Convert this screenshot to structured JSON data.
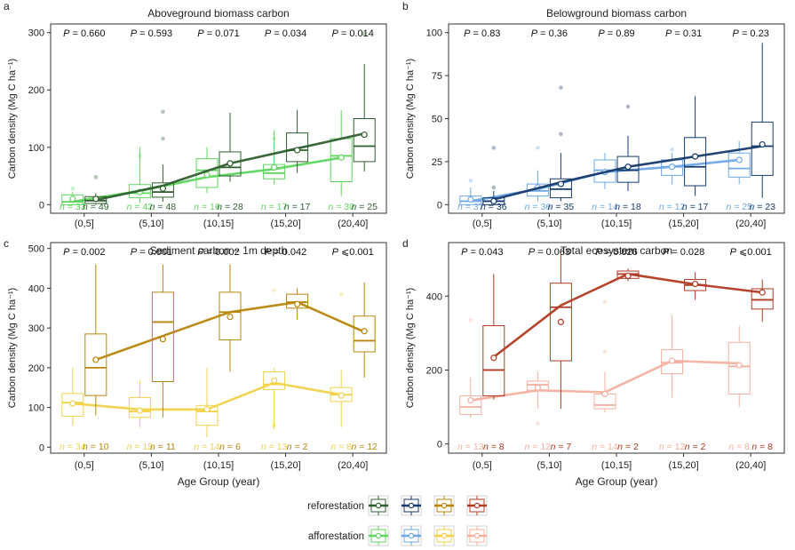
{
  "x_label": "Age Group (year)",
  "categories": [
    "(0,5]",
    "(5,10]",
    "(10,15]",
    "(15,20]",
    "(20,40]"
  ],
  "legend": {
    "rows": [
      {
        "label": "reforestation",
        "colors": [
          "#2f5f2f",
          "#163a6b",
          "#b8860b",
          "#b23a22"
        ]
      },
      {
        "label": "afforestation",
        "colors": [
          "#5fd65f",
          "#6fa8e8",
          "#f0d24a",
          "#f5b0a0"
        ]
      }
    ]
  },
  "chart_data": [
    {
      "type": "box",
      "panel_letter": "a",
      "title": "Aboveground biomass carbon",
      "ylabel": "Carbon density (Mg C ha⁻¹)",
      "ylim": [
        -15,
        315
      ],
      "yticks": [
        0,
        100,
        200,
        300
      ],
      "p_values": [
        "P = 0.660",
        "P = 0.593",
        "P = 0.071",
        "P = 0.034",
        "P = 0.014"
      ],
      "colors": {
        "reforestation": "#2f5f2f",
        "afforestation": "#5fd65f"
      },
      "series": [
        {
          "name": "reforestation",
          "boxes": [
            [
              0,
              2,
              7,
              14,
              20
            ],
            [
              5,
              13,
              22,
              38,
              70
            ],
            [
              40,
              50,
              65,
              92,
              160
            ],
            [
              55,
              75,
              95,
              125,
              165
            ],
            [
              58,
              75,
              102,
              150,
              245
            ]
          ],
          "means": [
            10,
            28,
            72,
            95,
            122
          ],
          "trend": [
            8,
            33,
            72,
            98,
            124
          ],
          "n": [
            "n = 49",
            "n = 48",
            "n = 28",
            "n = 17",
            "n = 25"
          ],
          "outliers": [
            [
              0,
              48
            ],
            [
              1,
              115
            ],
            [
              1,
              162
            ],
            [
              4,
              298
            ]
          ]
        },
        {
          "name": "afforestation",
          "boxes": [
            [
              0,
              0,
              5,
              17,
              22
            ],
            [
              3,
              12,
              20,
              35,
              100
            ],
            [
              20,
              30,
              60,
              80,
              100
            ],
            [
              35,
              45,
              55,
              70,
              130
            ],
            [
              15,
              40,
              85,
              115,
              165
            ]
          ],
          "means": [
            10,
            22,
            52,
            65,
            82
          ],
          "trend": [
            5,
            24,
            48,
            62,
            82
          ],
          "n": [
            "n = 33",
            "n = 42",
            "n = 16",
            "n = 17",
            "n = 30"
          ],
          "outliers": [
            [
              0,
              28
            ],
            [
              1,
              85
            ],
            [
              3,
              115
            ]
          ]
        }
      ]
    },
    {
      "type": "box",
      "panel_letter": "b",
      "title": "Belowground biomass carbon",
      "ylabel": "Carbon density (Mg C ha⁻¹)",
      "ylim": [
        -5,
        105
      ],
      "yticks": [
        0,
        25,
        50,
        75,
        100
      ],
      "p_values": [
        "P = 0.83",
        "P = 0.36",
        "P = 0.89",
        "P = 0.31",
        "P = 0.23"
      ],
      "colors": {
        "reforestation": "#163a6b",
        "afforestation": "#6fa8e8"
      },
      "series": [
        {
          "name": "reforestation",
          "boxes": [
            [
              0,
              0,
              2,
              4,
              8
            ],
            [
              2,
              4,
              9,
              15,
              30
            ],
            [
              8,
              13,
              20,
              28,
              40
            ],
            [
              5,
              11,
              22,
              39,
              63
            ],
            [
              4,
              17,
              34,
              48,
              94
            ]
          ],
          "means": [
            2,
            12,
            22,
            28,
            35
          ],
          "trend": [
            3,
            13,
            22,
            28,
            34
          ],
          "n": [
            "n = 36",
            "n = 35",
            "n = 18",
            "n = 17",
            "n = 23"
          ],
          "outliers": [
            [
              0,
              33
            ],
            [
              0,
              10
            ],
            [
              1,
              41
            ],
            [
              1,
              68
            ],
            [
              2,
              57
            ]
          ]
        },
        {
          "name": "afforestation",
          "boxes": [
            [
              0,
              0,
              2,
              5,
              10
            ],
            [
              2,
              5,
              8,
              12,
              20
            ],
            [
              9,
              13,
              20,
              26,
              30
            ],
            [
              12,
              17,
              22,
              26,
              30
            ],
            [
              12,
              16,
              21,
              30,
              37
            ]
          ],
          "means": [
            3,
            10,
            19,
            22,
            26
          ],
          "trend": [
            2,
            9,
            19,
            22,
            26
          ],
          "n": [
            "n = 37",
            "n = 36",
            "n = 14",
            "n = 12",
            "n = 25"
          ],
          "outliers": [
            [
              0,
              14
            ],
            [
              1,
              33
            ],
            [
              3,
              32
            ]
          ]
        }
      ]
    },
    {
      "type": "box",
      "panel_letter": "c",
      "title": "Sediment carbon − 1m depth",
      "ylabel": "Carbon density (Mg C ha⁻¹)",
      "ylim": [
        -15,
        515
      ],
      "yticks": [
        0,
        100,
        200,
        300,
        400,
        500
      ],
      "p_values": [
        "P = 0.002",
        "P = 0.001",
        "P = 0.002",
        "P = 0.042",
        "P ⩽0.001"
      ],
      "colors": {
        "reforestation": "#b8860b",
        "afforestation": "#f0d24a"
      },
      "series": [
        {
          "name": "reforestation",
          "boxes": [
            [
              80,
              130,
              200,
              285,
              460
            ],
            [
              75,
              165,
              315,
              390,
              460
            ],
            [
              190,
              270,
              340,
              390,
              460
            ],
            [
              320,
              350,
              365,
              385,
              400
            ],
            [
              175,
              240,
              268,
              330,
              415
            ]
          ],
          "means": [
            220,
            272,
            328,
            360,
            292
          ],
          "trend": [
            220,
            280,
            340,
            365,
            290
          ],
          "n": [
            "n = 10",
            "n = 11",
            "n = 6",
            "n = 2",
            "n = 12"
          ],
          "outliers": []
        },
        {
          "name": "afforestation",
          "boxes": [
            [
              55,
              78,
              112,
              135,
              200
            ],
            [
              50,
              75,
              90,
              125,
              170
            ],
            [
              25,
              55,
              90,
              105,
              200
            ],
            [
              45,
              145,
              158,
              190,
              200
            ],
            [
              50,
              115,
              132,
              150,
              195
            ]
          ],
          "means": [
            110,
            92,
            95,
            168,
            130
          ],
          "trend": [
            110,
            95,
            95,
            162,
            132
          ],
          "n": [
            "n = 34",
            "n = 15",
            "n = 14",
            "n = 13",
            "n = 8"
          ],
          "outliers": [
            [
              3,
              55
            ],
            [
              3,
              395
            ],
            [
              4,
              385
            ]
          ]
        }
      ]
    },
    {
      "type": "box",
      "panel_letter": "d",
      "title": "Total ecosystem carbon",
      "ylabel": "Carbon density (Mg C ha⁻¹)",
      "ylim": [
        -25,
        545
      ],
      "yticks": [
        0,
        200,
        400
      ],
      "p_values": [
        "P = 0.043",
        "P = 0.063",
        "P = 0.026",
        "P = 0.028",
        "P ⩽0.001"
      ],
      "colors": {
        "reforestation": "#b23a22",
        "afforestation": "#f5b0a0"
      },
      "series": [
        {
          "name": "reforestation",
          "boxes": [
            [
              120,
              130,
              200,
              320,
              460
            ],
            [
              95,
              225,
              370,
              435,
              520
            ],
            [
              440,
              448,
              460,
              468,
              475
            ],
            [
              390,
              415,
              430,
              445,
              465
            ],
            [
              330,
              365,
              390,
              420,
              445
            ]
          ],
          "means": [
            233,
            330,
            455,
            433,
            410
          ],
          "trend": [
            235,
            375,
            460,
            432,
            410
          ],
          "n": [
            "n = 8",
            "n = 7",
            "n = 2",
            "n = 2",
            "n = 8"
          ],
          "outliers": []
        },
        {
          "name": "afforestation",
          "boxes": [
            [
              70,
              80,
              100,
              130,
              180
            ],
            [
              95,
              145,
              160,
              170,
              195
            ],
            [
              85,
              95,
              105,
              135,
              195
            ],
            [
              125,
              190,
              220,
              255,
              350
            ],
            [
              100,
              135,
              210,
              275,
              320
            ]
          ],
          "means": [
            118,
            152,
            135,
            225,
            213
          ],
          "trend": [
            118,
            145,
            140,
            225,
            218
          ],
          "n": [
            "n = 13",
            "n = 12",
            "n = 14",
            "n = 12",
            "n = 8"
          ],
          "outliers": [
            [
              0,
              335
            ],
            [
              1,
              55
            ],
            [
              2,
              250
            ],
            [
              2,
              385
            ]
          ]
        }
      ]
    }
  ]
}
